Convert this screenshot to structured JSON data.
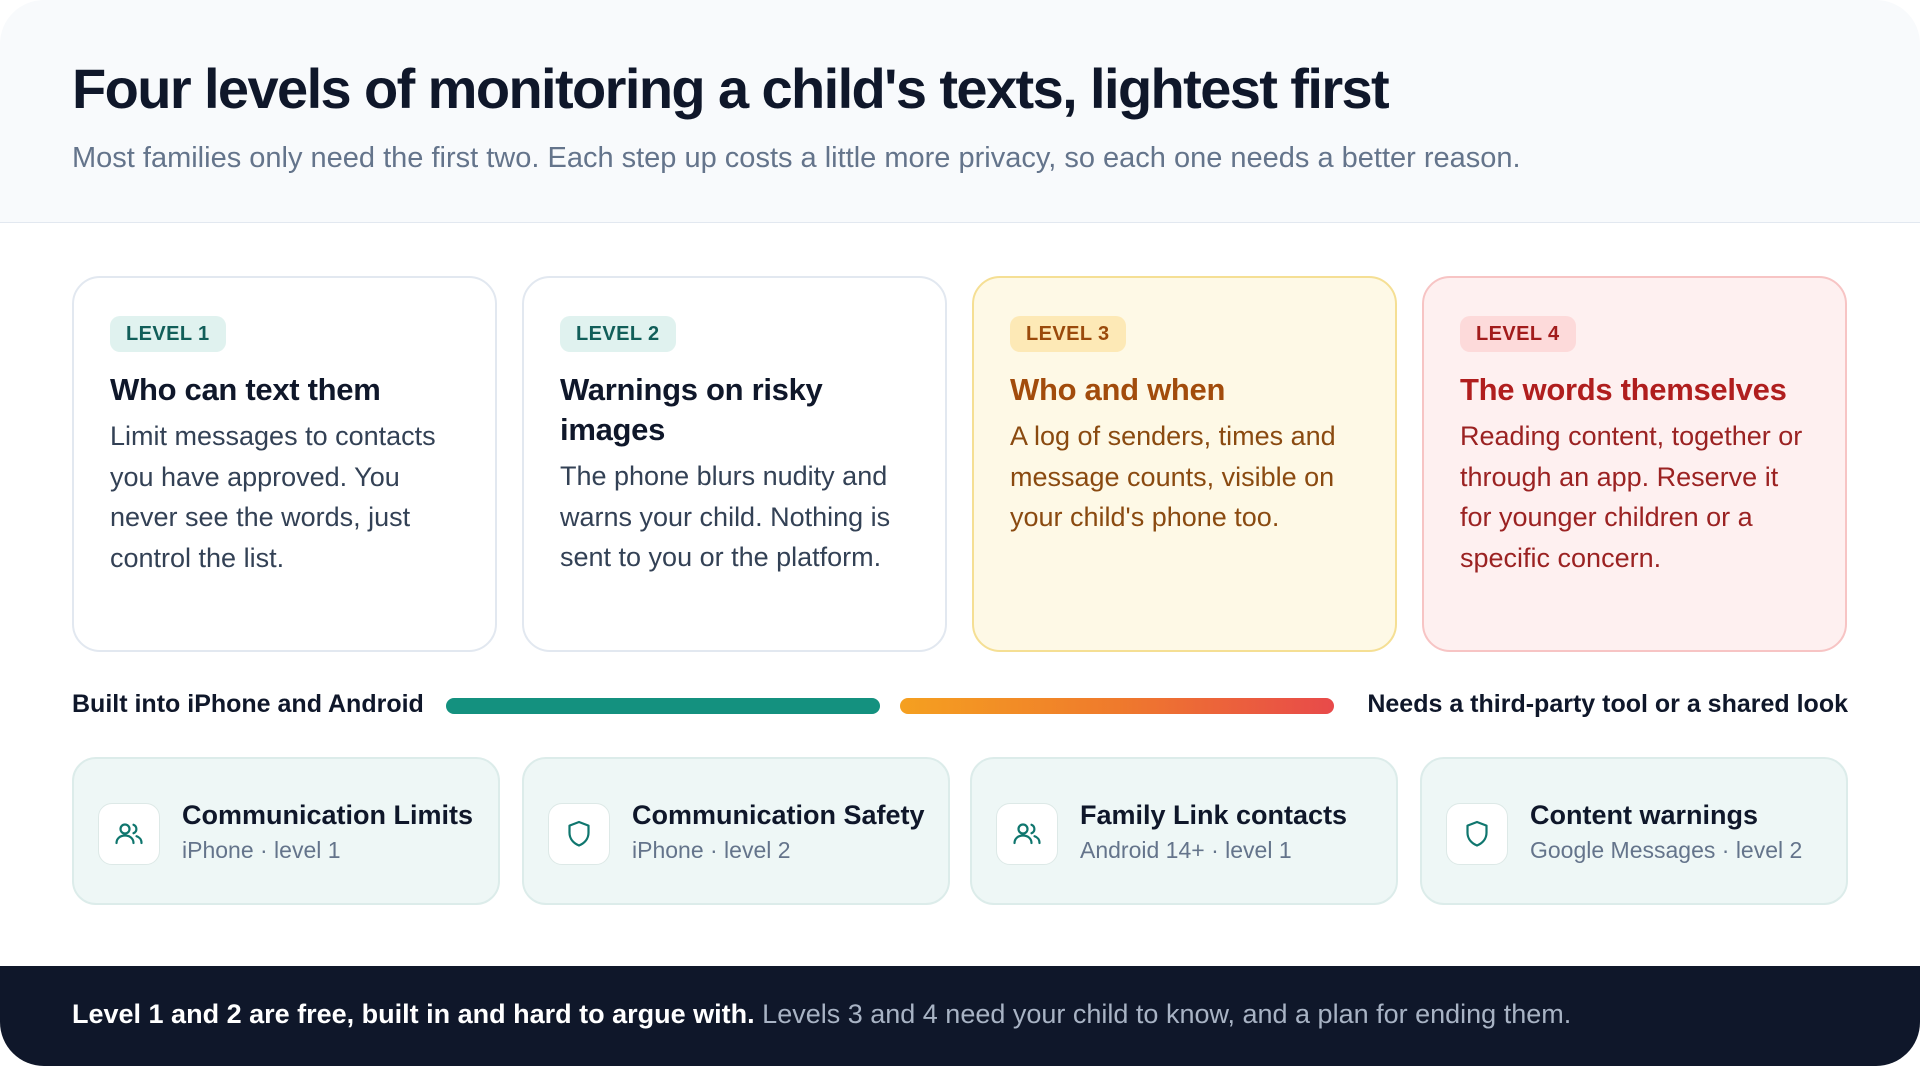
{
  "header": {
    "title": "Four levels of monitoring a child's texts, lightest first",
    "subtitle": "Most families only need the first two. Each step up costs a little more privacy, so each one needs a better reason."
  },
  "levels": [
    {
      "tag": "LEVEL 1",
      "title": "Who can text them",
      "body": "Limit messages to contacts you have approved. You never see the words, just control the list."
    },
    {
      "tag": "LEVEL 2",
      "title": "Warnings on risky images",
      "body": "The phone blurs nudity and warns your child. Nothing is sent to you or the platform."
    },
    {
      "tag": "LEVEL 3",
      "title": "Who and when",
      "body": "A log of senders, times and message counts, visible on your child's phone too."
    },
    {
      "tag": "LEVEL 4",
      "title": "The words themselves",
      "body": "Reading content, together or through an app. Reserve it for younger children or a specific concern."
    }
  ],
  "scale": {
    "left_label": "Built into iPhone and Android",
    "right_label": "Needs a third-party tool or a shared look",
    "colors": {
      "builtin": "#14917f",
      "third_party_start": "#f5a020",
      "third_party_end": "#e84a4a"
    }
  },
  "features": [
    {
      "name": "Communication Limits",
      "meta": "iPhone · level 1",
      "icon": "people-icon"
    },
    {
      "name": "Communication Safety",
      "meta": "iPhone · level 2",
      "icon": "shield-icon"
    },
    {
      "name": "Family Link contacts",
      "meta": "Android 14+ · level 1",
      "icon": "people-icon"
    },
    {
      "name": "Content warnings",
      "meta": "Google Messages · level 2",
      "icon": "shield-icon"
    }
  ],
  "footer": {
    "strong": "Level 1 and 2 are free, built in and hard to argue with.",
    "light": "Levels 3 and 4 need your child to know, and a plan for ending them."
  }
}
